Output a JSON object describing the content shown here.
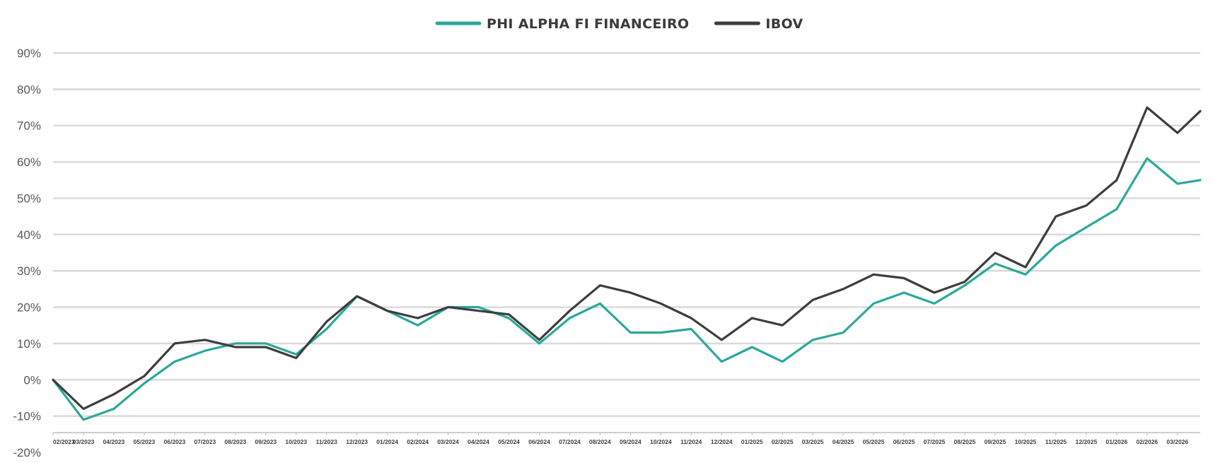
{
  "chart_data": {
    "type": "line",
    "title": "",
    "xlabel": "",
    "ylabel": "",
    "ylim": [
      -20,
      90
    ],
    "yticks": [
      -20,
      -10,
      0,
      10,
      20,
      30,
      40,
      50,
      60,
      70,
      80,
      90
    ],
    "ytick_labels": [
      "-20%",
      "-10%",
      "0%",
      "10%",
      "20%",
      "30%",
      "40%",
      "50%",
      "60%",
      "70%",
      "80%",
      "90%"
    ],
    "grid": true,
    "legend_position": "top-center",
    "categories": [
      "02/2023",
      "03/2023",
      "04/2023",
      "05/2023",
      "06/2023",
      "07/2023",
      "08/2023",
      "09/2023",
      "10/2023",
      "11/2023",
      "12/2023",
      "01/2024",
      "02/2024",
      "03/2024",
      "04/2024",
      "05/2024",
      "06/2024",
      "07/2024",
      "08/2024",
      "09/2024",
      "10/2024",
      "11/2024",
      "12/2024",
      "01/2025",
      "02/2025",
      "03/2025",
      "04/2025",
      "05/2025",
      "06/2025",
      "07/2025",
      "08/2025",
      "09/2025",
      "10/2025",
      "11/2025",
      "12/2025",
      "01/2026",
      "02/2026",
      "03/2026"
    ],
    "x": [
      0,
      1,
      2,
      3,
      4,
      5,
      6,
      7,
      8,
      9,
      10,
      11,
      12,
      13,
      14,
      15,
      16,
      17,
      18,
      19,
      20,
      21,
      22,
      23,
      24,
      25,
      26,
      27,
      28,
      29,
      30,
      31,
      32,
      33,
      34,
      35,
      36,
      37,
      37.75
    ],
    "series": [
      {
        "name": "PHI ALPHA FI FINANCEIRO",
        "color": "#2ba89a",
        "values": [
          0,
          -11,
          -8,
          -1,
          5,
          8,
          10,
          10,
          7,
          14,
          23,
          19,
          15,
          20,
          20,
          17,
          10,
          17,
          21,
          13,
          13,
          14,
          5,
          9,
          5,
          11,
          13,
          21,
          24,
          21,
          26,
          32,
          29,
          37,
          42,
          47,
          61,
          54,
          55
        ]
      },
      {
        "name": "IBOV",
        "color": "#3d3d3d",
        "values": [
          0,
          -8,
          -4,
          1,
          10,
          11,
          9,
          9,
          6,
          16,
          23,
          19,
          17,
          20,
          19,
          18,
          11,
          19,
          26,
          24,
          21,
          17,
          11,
          17,
          15,
          22,
          25,
          29,
          28,
          24,
          27,
          35,
          31,
          45,
          48,
          55,
          75,
          68,
          74
        ]
      }
    ]
  }
}
